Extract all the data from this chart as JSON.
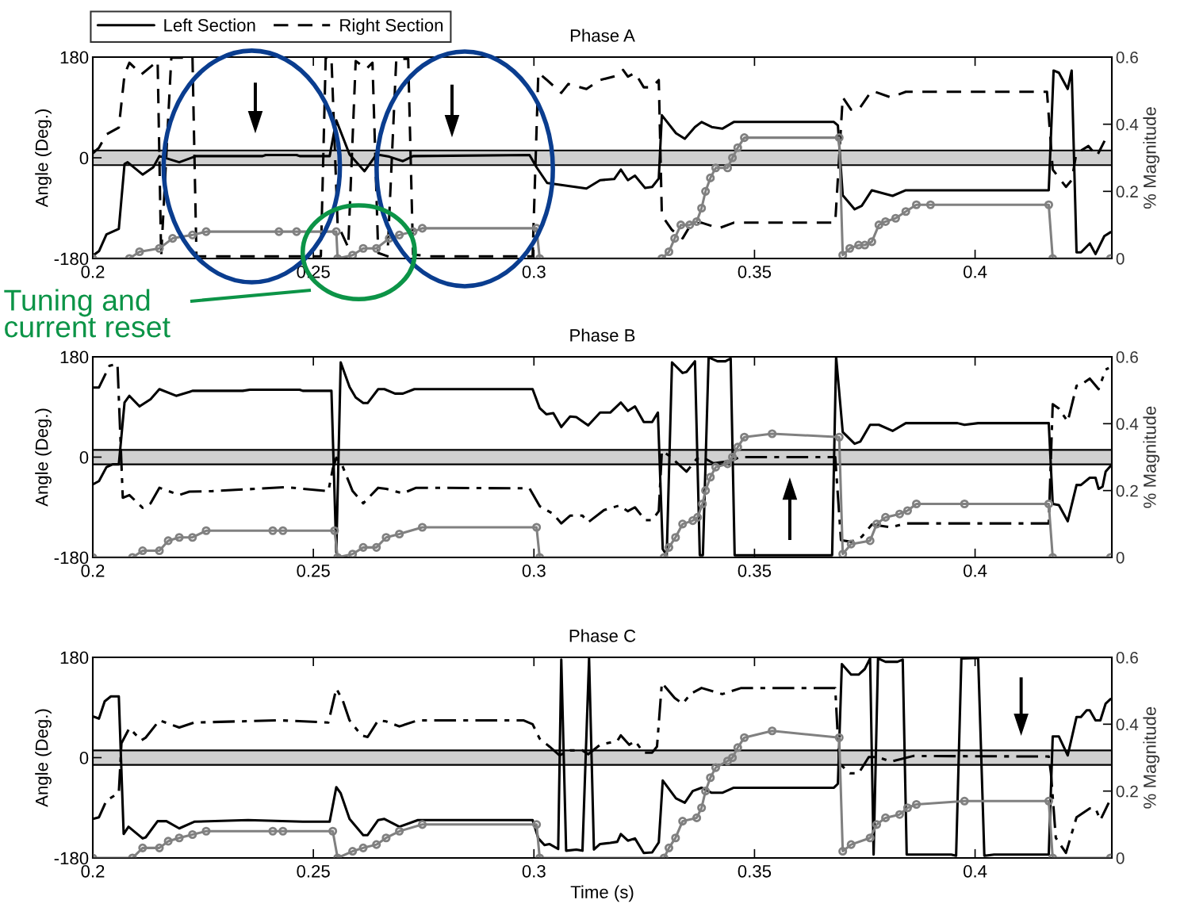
{
  "chart_data": [
    {
      "type": "line",
      "title": "Phase A",
      "ylabel": "Angle (Deg.)",
      "y2label": "% Magnitude",
      "xlim": [
        0.2,
        0.431
      ],
      "xticks": [
        0.2,
        0.25,
        0.3,
        0.35,
        0.4
      ],
      "ylim": [
        -180,
        180
      ],
      "yticks": [
        -180,
        0,
        180
      ],
      "y2lim": [
        0,
        0.6
      ],
      "y2ticks": [
        0,
        0.2,
        0.4,
        0.6
      ],
      "legend": "top left",
      "bands": [
        {
          "axis": "y",
          "from": -13,
          "to": 13,
          "color": "#d0d0d0"
        }
      ],
      "annotations": [
        "Tuning and\ncurrent reset"
      ],
      "series": [
        {
          "name": "Left Section",
          "color": "#000000",
          "line_style": "solid",
          "x": [
            0.2,
            0.2014,
            0.2031,
            0.2059,
            0.2072,
            0.2079,
            0.2113,
            0.2137,
            0.2151,
            0.2196,
            0.2234,
            0.2385,
            0.2392,
            0.2462,
            0.2469,
            0.2537,
            0.2552,
            0.2582,
            0.2616,
            0.2643,
            0.2672,
            0.2703,
            0.2726,
            0.299,
            0.3006,
            0.303,
            0.3119,
            0.315,
            0.3182,
            0.3197,
            0.3213,
            0.3229,
            0.3252,
            0.3268,
            0.3283,
            0.329,
            0.3322,
            0.3342,
            0.3365,
            0.338,
            0.3403,
            0.3427,
            0.3453,
            0.368,
            0.3689,
            0.37,
            0.3727,
            0.3743,
            0.3766,
            0.3813,
            0.3843,
            0.4167,
            0.4178,
            0.419,
            0.421,
            0.4219,
            0.423,
            0.424,
            0.426,
            0.4273,
            0.4293,
            0.4307
          ],
          "values": [
            -175,
            -167,
            -137,
            -127,
            -11,
            -8,
            -30,
            -17,
            3,
            -8,
            3,
            3,
            5,
            5,
            3,
            3,
            67,
            6,
            -24,
            6,
            2,
            -6,
            3,
            5,
            -17,
            -45,
            -55,
            -40,
            -38,
            -21,
            -40,
            -32,
            -54,
            -52,
            -37,
            76,
            44,
            34,
            55,
            64,
            55,
            52,
            64,
            64,
            58,
            -67,
            -92,
            -86,
            -58,
            -68,
            -58,
            -58,
            156,
            152,
            123,
            156,
            -169,
            -169,
            -153,
            -172,
            -140,
            -133
          ]
        },
        {
          "name": "Right Section",
          "color": "#000000",
          "line_style": "dashed",
          "x": [
            0.2,
            0.2014,
            0.2031,
            0.2059,
            0.2072,
            0.2083,
            0.211,
            0.2147,
            0.2155,
            0.2178,
            0.2226,
            0.2235,
            0.2517,
            0.2528,
            0.2541,
            0.2555,
            0.2579,
            0.2596,
            0.262,
            0.2634,
            0.2647,
            0.2668,
            0.2688,
            0.2715,
            0.2726,
            0.2764,
            0.2997,
            0.301,
            0.3028,
            0.3062,
            0.3078,
            0.3119,
            0.315,
            0.3189,
            0.3202,
            0.3213,
            0.3229,
            0.3249,
            0.3268,
            0.3283,
            0.329,
            0.3313,
            0.3337,
            0.3356,
            0.338,
            0.3419,
            0.3453,
            0.3683,
            0.37,
            0.3719,
            0.3736,
            0.3766,
            0.3809,
            0.3843,
            0.4163,
            0.4176,
            0.4206,
            0.4219,
            0.423,
            0.424,
            0.4257,
            0.4276,
            0.4296,
            0.4307
          ],
          "values": [
            8,
            18,
            42,
            54,
            149,
            170,
            149,
            173,
            -176,
            179,
            179,
            -176,
            -176,
            179,
            179,
            -119,
            -160,
            173,
            159,
            170,
            -170,
            -176,
            177,
            177,
            -173,
            -176,
            -176,
            152,
            140,
            116,
            132,
            123,
            139,
            147,
            157,
            145,
            152,
            126,
            126,
            139,
            -103,
            -129,
            -144,
            -119,
            -116,
            -126,
            -116,
            -116,
            108,
            86,
            86,
            120,
            108,
            118,
            118,
            -21,
            -52,
            -40,
            10,
            13,
            21,
            3,
            34,
            44
          ]
        },
        {
          "color": "#808080",
          "axis": "y2",
          "marker": "circle",
          "line_style": "solid",
          "x": [
            0.2,
            0.2083,
            0.2106,
            0.2151,
            0.2181,
            0.2226,
            0.2257,
            0.2422,
            0.2462,
            0.2552,
            0.2555,
            0.2589,
            0.2613,
            0.2643,
            0.2672,
            0.2695,
            0.2726,
            0.2747,
            0.3006,
            0.3013,
            0.329,
            0.3306,
            0.3319,
            0.3333,
            0.3353,
            0.3369,
            0.338,
            0.3389,
            0.34,
            0.3412,
            0.3439,
            0.345,
            0.3462,
            0.3477,
            0.3692,
            0.37,
            0.3716,
            0.3736,
            0.375,
            0.3766,
            0.3782,
            0.3797,
            0.382,
            0.3843,
            0.3867,
            0.3899,
            0.4167,
            0.4176,
            0.4307
          ],
          "values": [
            0,
            0,
            0.02,
            0.03,
            0.06,
            0.07,
            0.08,
            0.08,
            0.08,
            0.08,
            0,
            0.01,
            0.03,
            0.03,
            0.06,
            0.07,
            0.08,
            0.09,
            0.09,
            0,
            0,
            0.02,
            0.06,
            0.1,
            0.1,
            0.11,
            0.15,
            0.2,
            0.24,
            0.27,
            0.27,
            0.3,
            0.33,
            0.36,
            0.36,
            0.01,
            0.03,
            0.04,
            0.04,
            0.05,
            0.1,
            0.11,
            0.12,
            0.14,
            0.16,
            0.16,
            0.16,
            0,
            0
          ]
        }
      ]
    },
    {
      "type": "line",
      "title": "Phase B",
      "ylabel": "Angle (Deg.)",
      "y2label": "% Magnitude",
      "xlim": [
        0.2,
        0.431
      ],
      "xticks": [
        0.2,
        0.25,
        0.3,
        0.35,
        0.4
      ],
      "ylim": [
        -180,
        180
      ],
      "yticks": [
        -180,
        0,
        180
      ],
      "y2lim": [
        0,
        0.6
      ],
      "y2ticks": [
        0,
        0.2,
        0.4,
        0.6
      ],
      "bands": [
        {
          "axis": "y",
          "from": -13,
          "to": 13,
          "color": "#d0d0d0"
        }
      ],
      "series": [
        {
          "color": "#000000",
          "line_style": "solid",
          "x": [
            0.2,
            0.2014,
            0.2031,
            0.2045,
            0.2059,
            0.2072,
            0.2083,
            0.2106,
            0.2131,
            0.2151,
            0.2189,
            0.2219,
            0.2226,
            0.234,
            0.2356,
            0.2469,
            0.2476,
            0.2541,
            0.2552,
            0.2562,
            0.2582,
            0.2596,
            0.2613,
            0.2623,
            0.2647,
            0.2661,
            0.2685,
            0.2703,
            0.2729,
            0.2997,
            0.3013,
            0.3028,
            0.3044,
            0.3062,
            0.3082,
            0.3096,
            0.3123,
            0.315,
            0.3173,
            0.3197,
            0.3213,
            0.3229,
            0.3249,
            0.3268,
            0.3281,
            0.3292,
            0.3301,
            0.3313,
            0.3337,
            0.3346,
            0.3365,
            0.3376,
            0.3383,
            0.3396,
            0.3416,
            0.3434,
            0.3446,
            0.3455,
            0.3676,
            0.3685,
            0.37,
            0.3727,
            0.374,
            0.3762,
            0.3782,
            0.3813,
            0.3843,
            0.396,
            0.3976,
            0.4007,
            0.4167,
            0.4176,
            0.419,
            0.421,
            0.423,
            0.424,
            0.426,
            0.4273,
            0.428,
            0.4289,
            0.4296,
            0.4307
          ],
          "values": [
            -49,
            -43,
            -18,
            -13,
            -13,
            98,
            110,
            91,
            104,
            122,
            110,
            117,
            119,
            119,
            121,
            121,
            119,
            119,
            -171,
            170,
            126,
            107,
            97,
            97,
            122,
            122,
            114,
            114,
            122,
            122,
            88,
            77,
            79,
            54,
            73,
            72,
            57,
            80,
            80,
            98,
            83,
            91,
            63,
            63,
            80,
            -165,
            -176,
            170,
            151,
            153,
            172,
            -176,
            -176,
            179,
            172,
            172,
            177,
            -176,
            -176,
            180,
            45,
            24,
            28,
            58,
            58,
            47,
            61,
            61,
            58,
            61,
            61,
            -84,
            -86,
            -115,
            -50,
            -50,
            -37,
            -37,
            -57,
            -53,
            -26,
            -16
          ]
        },
        {
          "color": "#000000",
          "line_style": "dashdot",
          "x": [
            0.2,
            0.2014,
            0.2038,
            0.2056,
            0.2068,
            0.2083,
            0.2113,
            0.2131,
            0.2151,
            0.2196,
            0.2219,
            0.2271,
            0.2438,
            0.2534,
            0.2544,
            0.2552,
            0.2566,
            0.2589,
            0.2613,
            0.2647,
            0.2665,
            0.2703,
            0.2733,
            0.299,
            0.3013,
            0.3044,
            0.3062,
            0.3082,
            0.311,
            0.3123,
            0.3159,
            0.3193,
            0.3213,
            0.3229,
            0.3252,
            0.3268,
            0.3283,
            0.329,
            0.3306,
            0.3346,
            0.3369,
            0.3389,
            0.3407,
            0.3446,
            0.3466,
            0.3683,
            0.3696,
            0.3719,
            0.3743,
            0.3766,
            0.3809,
            0.3843,
            0.4167,
            0.4176,
            0.419,
            0.421,
            0.423,
            0.424,
            0.426,
            0.428,
            0.4296,
            0.4303
          ],
          "values": [
            125,
            125,
            164,
            167,
            -73,
            -68,
            -91,
            -83,
            -55,
            -68,
            -62,
            -61,
            -54,
            -61,
            -21,
            -1,
            -16,
            -61,
            -83,
            -55,
            -57,
            -65,
            -55,
            -56,
            -88,
            -102,
            -119,
            -105,
            -105,
            -117,
            -95,
            -87,
            -97,
            -90,
            -113,
            -113,
            -97,
            11,
            3,
            -26,
            -3,
            -3,
            -11,
            -7,
            0,
            0,
            -149,
            -152,
            -143,
            -121,
            -126,
            -119,
            -119,
            95,
            87,
            64,
            128,
            130,
            141,
            122,
            157,
            160
          ]
        },
        {
          "color": "#808080",
          "axis": "y2",
          "marker": "circle",
          "line_style": "solid",
          "x": [
            0.2,
            0.209,
            0.2113,
            0.2151,
            0.2171,
            0.2196,
            0.2226,
            0.2257,
            0.2408,
            0.2431,
            0.2548,
            0.2555,
            0.2589,
            0.2613,
            0.2643,
            0.2665,
            0.2695,
            0.2747,
            0.3006,
            0.3013,
            0.3295,
            0.3306,
            0.3321,
            0.3337,
            0.336,
            0.3371,
            0.3382,
            0.3389,
            0.34,
            0.3412,
            0.3439,
            0.345,
            0.3462,
            0.3477,
            0.354,
            0.3692,
            0.37,
            0.3719,
            0.3762,
            0.3777,
            0.3797,
            0.3829,
            0.3847,
            0.3867,
            0.3976,
            0.4167,
            0.4176,
            0.4307
          ],
          "values": [
            0,
            0,
            0.02,
            0.02,
            0.05,
            0.06,
            0.06,
            0.08,
            0.08,
            0.08,
            0.08,
            0,
            0.01,
            0.03,
            0.03,
            0.06,
            0.07,
            0.09,
            0.09,
            0,
            0,
            0.03,
            0.06,
            0.1,
            0.11,
            0.12,
            0.16,
            0.2,
            0.24,
            0.27,
            0.28,
            0.3,
            0.33,
            0.36,
            0.37,
            0.36,
            0.01,
            0.04,
            0.05,
            0.1,
            0.12,
            0.13,
            0.14,
            0.16,
            0.16,
            0.16,
            0,
            0
          ]
        }
      ]
    },
    {
      "type": "line",
      "title": "Phase C",
      "xlabel": "Time (s)",
      "ylabel": "Angle (Deg.)",
      "y2label": "% Magnitude",
      "xlim": [
        0.2,
        0.431
      ],
      "xticks": [
        0.2,
        0.25,
        0.3,
        0.35,
        0.4
      ],
      "ylim": [
        -180,
        180
      ],
      "yticks": [
        -180,
        0,
        180
      ],
      "y2lim": [
        0,
        0.6
      ],
      "y2ticks": [
        0,
        0.2,
        0.4,
        0.6
      ],
      "bands": [
        {
          "axis": "y",
          "from": -13,
          "to": 13,
          "color": "#d0d0d0"
        }
      ],
      "series": [
        {
          "color": "#000000",
          "line_style": "solid",
          "x": [
            0.2,
            0.2014,
            0.2027,
            0.2041,
            0.2059,
            0.207,
            0.2081,
            0.2113,
            0.212,
            0.2147,
            0.2167,
            0.2196,
            0.223,
            0.2352,
            0.2476,
            0.2537,
            0.2552,
            0.2562,
            0.2582,
            0.2613,
            0.2623,
            0.2647,
            0.2661,
            0.2695,
            0.2737,
            0.2997,
            0.301,
            0.3024,
            0.3035,
            0.3055,
            0.3062,
            0.3073,
            0.3096,
            0.311,
            0.3125,
            0.3136,
            0.315,
            0.3173,
            0.3189,
            0.3197,
            0.3213,
            0.3229,
            0.3249,
            0.3268,
            0.3283,
            0.3292,
            0.3322,
            0.3342,
            0.336,
            0.338,
            0.3403,
            0.3427,
            0.3453,
            0.368,
            0.3689,
            0.3698,
            0.3719,
            0.3736,
            0.375,
            0.3762,
            0.377,
            0.378,
            0.3797,
            0.3824,
            0.3836,
            0.3845,
            0.3946,
            0.3957,
            0.3969,
            0.4007,
            0.4021,
            0.4043,
            0.4167,
            0.4176,
            0.419,
            0.421,
            0.423,
            0.424,
            0.4253,
            0.426,
            0.4273,
            0.4284,
            0.4296,
            0.4307
          ],
          "values": [
            74,
            70,
            101,
            110,
            110,
            -137,
            -124,
            -145,
            -143,
            -114,
            -114,
            -127,
            -115,
            -112,
            -115,
            -115,
            -53,
            -64,
            -110,
            -139,
            -139,
            -112,
            -110,
            -124,
            -112,
            -112,
            -145,
            -157,
            -155,
            -164,
            176,
            -167,
            -165,
            -167,
            178,
            -165,
            -155,
            -153,
            -151,
            -137,
            -149,
            -145,
            -171,
            -170,
            -152,
            -41,
            -73,
            -81,
            -60,
            -54,
            -63,
            -63,
            -54,
            -54,
            -47,
            168,
            149,
            149,
            159,
            178,
            -174,
            178,
            172,
            172,
            176,
            -174,
            -174,
            -176,
            178,
            179,
            -176,
            -174,
            -174,
            38,
            38,
            4,
            73,
            73,
            85,
            85,
            67,
            67,
            97,
            105
          ]
        },
        {
          "color": "#000000",
          "line_style": "dashdot",
          "x": [
            0.2,
            0.2014,
            0.2031,
            0.2045,
            0.2059,
            0.2065,
            0.2083,
            0.211,
            0.212,
            0.2151,
            0.2196,
            0.223,
            0.2424,
            0.2534,
            0.2552,
            0.2566,
            0.2582,
            0.2609,
            0.2623,
            0.2647,
            0.2665,
            0.2695,
            0.2737,
            0.2976,
            0.2997,
            0.3013,
            0.3035,
            0.3058,
            0.3082,
            0.311,
            0.3123,
            0.315,
            0.3189,
            0.3197,
            0.3216,
            0.3229,
            0.3249,
            0.3268,
            0.3279,
            0.329,
            0.3319,
            0.3337,
            0.3356,
            0.338,
            0.3427,
            0.347,
            0.3683,
            0.3692,
            0.3716,
            0.3736,
            0.3759,
            0.378,
            0.3809,
            0.386,
            0.4167,
            0.4172,
            0.4183,
            0.4206,
            0.423,
            0.426,
            0.4273,
            0.4284,
            0.4303
          ],
          "values": [
            -110,
            -107,
            -77,
            -70,
            -63,
            26,
            53,
            31,
            36,
            67,
            54,
            63,
            67,
            63,
            124,
            104,
            67,
            40,
            37,
            67,
            65,
            56,
            67,
            67,
            60,
            34,
            20,
            4,
            13,
            13,
            6,
            23,
            30,
            40,
            23,
            30,
            9,
            9,
            20,
            134,
            107,
            97,
            115,
            125,
            114,
            125,
            125,
            -10,
            -28,
            -28,
            1,
            1,
            -7,
            3,
            2,
            -28,
            -144,
            -171,
            -107,
            -91,
            -91,
            -112,
            -81
          ]
        },
        {
          "color": "#808080",
          "axis": "y2",
          "marker": "circle",
          "line_style": "solid",
          "x": [
            0.2,
            0.209,
            0.2113,
            0.2151,
            0.2171,
            0.2196,
            0.2226,
            0.2257,
            0.2408,
            0.2431,
            0.2544,
            0.2555,
            0.2589,
            0.2613,
            0.2643,
            0.2665,
            0.2695,
            0.2747,
            0.3006,
            0.3013,
            0.3295,
            0.3306,
            0.3321,
            0.3337,
            0.3369,
            0.338,
            0.3389,
            0.34,
            0.3412,
            0.3439,
            0.345,
            0.3462,
            0.3477,
            0.354,
            0.3692,
            0.37,
            0.3719,
            0.3762,
            0.3777,
            0.3797,
            0.3829,
            0.3847,
            0.3867,
            0.3976,
            0.4167,
            0.4176,
            0.4307
          ],
          "values": [
            0,
            0,
            0.03,
            0.03,
            0.05,
            0.06,
            0.07,
            0.08,
            0.08,
            0.08,
            0.08,
            0,
            0.02,
            0.03,
            0.04,
            0.06,
            0.08,
            0.1,
            0.1,
            0,
            0,
            0.03,
            0.06,
            0.11,
            0.12,
            0.15,
            0.2,
            0.24,
            0.27,
            0.29,
            0.3,
            0.33,
            0.36,
            0.38,
            0.36,
            0.02,
            0.04,
            0.06,
            0.1,
            0.12,
            0.13,
            0.15,
            0.16,
            0.17,
            0.17,
            0,
            0
          ]
        }
      ]
    }
  ]
}
